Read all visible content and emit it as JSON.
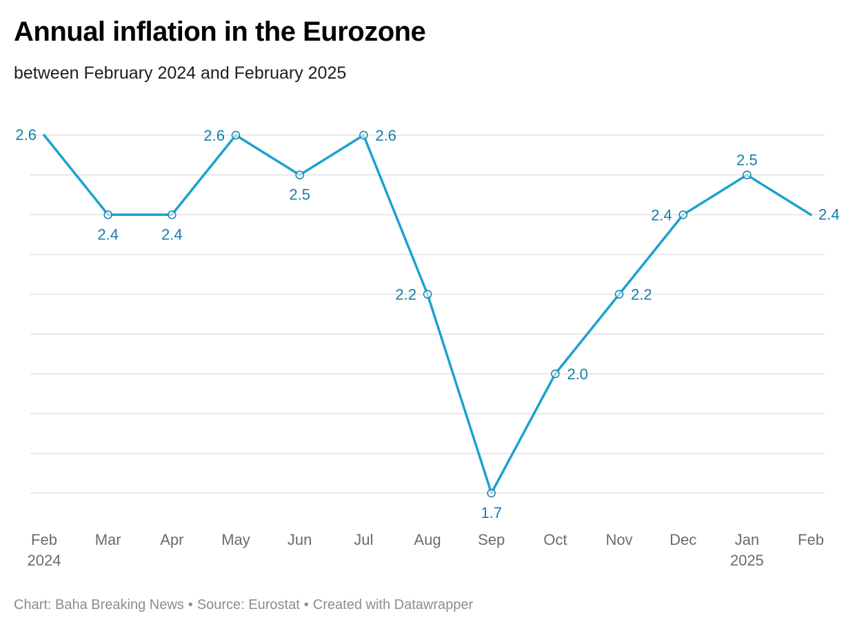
{
  "title": "Annual inflation in the Eurozone",
  "subtitle": "between February 2024 and February 2025",
  "footer": {
    "chart_credit": "Chart: Baha Breaking News",
    "source": "Source: Eurostat",
    "created_with": "Created with Datawrapper"
  },
  "colors": {
    "line": "#1aa1d0",
    "label": "#1380a6",
    "grid": "#e0e0e0",
    "axis_text": "#6b6b6b"
  },
  "chart_data": {
    "type": "line",
    "title": "Annual inflation in the Eurozone",
    "subtitle": "between February 2024 and February 2025",
    "categories": [
      "Feb",
      "Mar",
      "Apr",
      "May",
      "Jun",
      "Jul",
      "Aug",
      "Sep",
      "Oct",
      "Nov",
      "Dec",
      "Jan",
      "Feb"
    ],
    "year_labels": [
      "2024",
      "",
      "",
      "",
      "",
      "",
      "",
      "",
      "",
      "",
      "",
      "2025",
      ""
    ],
    "series": [
      {
        "values": [
          2.6,
          2.4,
          2.4,
          2.6,
          2.5,
          2.6,
          2.2,
          1.7,
          2.0,
          2.2,
          2.4,
          2.5,
          2.4
        ]
      }
    ],
    "data_labels": [
      "2.6",
      "2.4",
      "2.4",
      "2.6",
      "2.5",
      "2.6",
      "2.2",
      "1.7",
      "2.0",
      "2.2",
      "2.4",
      "2.5",
      "2.4"
    ],
    "ylim": [
      1.7,
      2.6
    ],
    "grid": true,
    "markers": "hollow circles"
  }
}
